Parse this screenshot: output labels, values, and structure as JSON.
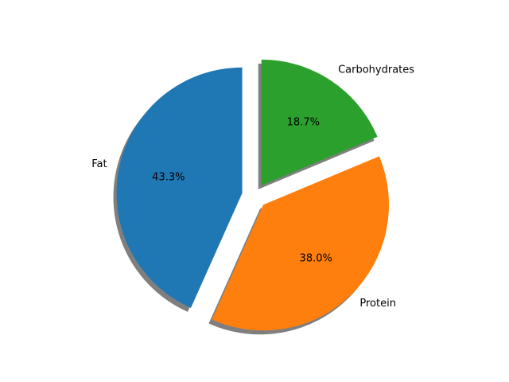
{
  "chart_data": {
    "type": "pie",
    "title": "",
    "slices": [
      {
        "label": "Fat",
        "value": 43.3,
        "pct_label": "43.3%",
        "color": "#1f77b4",
        "exploded": true
      },
      {
        "label": "Protein",
        "value": 38.0,
        "pct_label": "38.0%",
        "color": "#ff7f0e",
        "exploded": true
      },
      {
        "label": "Carbohydrates",
        "value": 18.7,
        "pct_label": "18.7%",
        "color": "#2ca02c",
        "exploded": true
      }
    ],
    "start_angle": "top",
    "direction": "counterclockwise",
    "shadow": true,
    "legend": "none",
    "shadow_color": "#7f7f7f"
  }
}
